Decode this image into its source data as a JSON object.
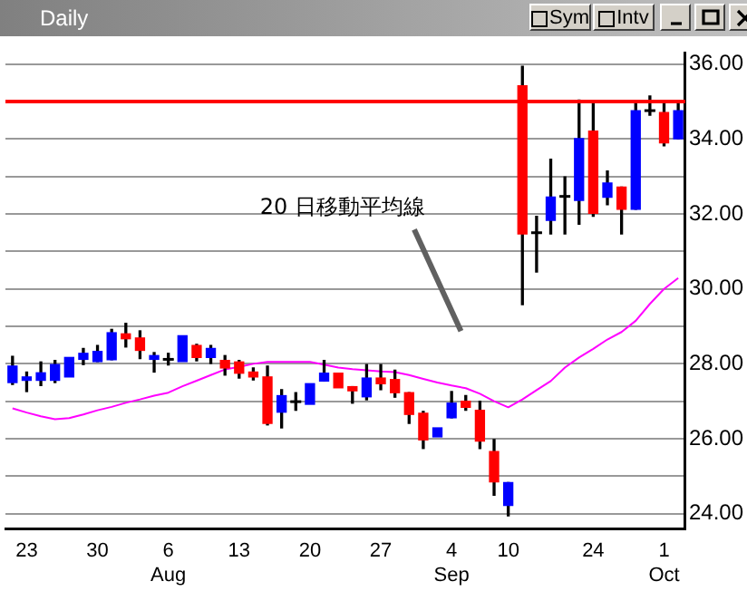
{
  "chart_data": {
    "type": "candlestick",
    "title": "Daily",
    "categories": [
      null,
      "23",
      null,
      null,
      null,
      null,
      "30",
      null,
      null,
      null,
      null,
      "6\nAug",
      null,
      null,
      null,
      null,
      "13",
      null,
      null,
      null,
      null,
      "20",
      null,
      null,
      null,
      null,
      "27",
      null,
      null,
      null,
      null,
      "4\nSep",
      null,
      null,
      null,
      "10",
      null,
      null,
      null,
      null,
      null,
      "24",
      null,
      null,
      null,
      null,
      "1\nOct",
      null
    ],
    "series": [
      {
        "type": "line",
        "color": "#ff00ff",
        "values": [
          26.81,
          26.7,
          26.6,
          26.52,
          26.55,
          26.65,
          26.76,
          26.85,
          26.96,
          27.05,
          27.15,
          27.23,
          27.4,
          27.55,
          27.7,
          27.85,
          27.92,
          28.0,
          28.05,
          28.05,
          28.05,
          28.05,
          27.98,
          27.9,
          27.86,
          27.83,
          27.8,
          27.78,
          27.7,
          27.6,
          27.5,
          27.42,
          27.35,
          27.2,
          27.0,
          26.84,
          27.05,
          27.3,
          27.54,
          27.9,
          28.17,
          28.4,
          28.65,
          28.85,
          29.15,
          29.6,
          30.0,
          30.29
        ]
      },
      {
        "type": "candlestick",
        "ohlc": [
          [
            27.5,
            28.2,
            27.45,
            27.94
          ],
          [
            27.56,
            27.78,
            27.26,
            27.65
          ],
          [
            27.56,
            28.05,
            27.42,
            27.76
          ],
          [
            27.56,
            28.09,
            27.5,
            27.98
          ],
          [
            27.65,
            28.17,
            27.65,
            28.17
          ],
          [
            28.12,
            28.41,
            27.98,
            28.28
          ],
          [
            28.06,
            28.49,
            28.06,
            28.33
          ],
          [
            28.11,
            28.92,
            28.11,
            28.83
          ],
          [
            28.8,
            29.08,
            28.45,
            28.67
          ],
          [
            28.69,
            28.88,
            28.14,
            28.36
          ],
          [
            28.12,
            28.3,
            27.78,
            28.22
          ],
          [
            28.12,
            28.28,
            27.97,
            28.12
          ],
          [
            28.06,
            28.75,
            28.06,
            28.75
          ],
          [
            28.49,
            28.52,
            28.08,
            28.17
          ],
          [
            28.17,
            28.49,
            28.01,
            28.41
          ],
          [
            28.09,
            28.22,
            27.7,
            27.89
          ],
          [
            28.05,
            28.09,
            27.62,
            27.75
          ],
          [
            27.78,
            27.89,
            27.57,
            27.65
          ],
          [
            27.65,
            27.94,
            26.37,
            26.41
          ],
          [
            26.71,
            27.31,
            26.29,
            27.15
          ],
          [
            26.99,
            27.23,
            26.76,
            26.99
          ],
          [
            26.92,
            27.47,
            26.92,
            27.47
          ],
          [
            27.54,
            28.09,
            27.54,
            27.75
          ],
          [
            27.75,
            27.75,
            27.36,
            27.36
          ],
          [
            27.39,
            27.39,
            26.95,
            27.28
          ],
          [
            27.12,
            27.98,
            27.04,
            27.62
          ],
          [
            27.62,
            27.98,
            27.31,
            27.47
          ],
          [
            27.58,
            27.83,
            27.11,
            27.23
          ],
          [
            27.23,
            27.23,
            26.41,
            26.65
          ],
          [
            26.68,
            26.73,
            25.74,
            25.97
          ],
          [
            26.05,
            26.29,
            26.05,
            26.29
          ],
          [
            26.56,
            27.26,
            26.56,
            26.95
          ],
          [
            27.0,
            27.15,
            26.76,
            26.84
          ],
          [
            26.76,
            27.0,
            25.74,
            25.94
          ],
          [
            25.66,
            25.98,
            24.49,
            24.85
          ],
          [
            24.22,
            24.83,
            23.94,
            24.83
          ],
          [
            35.42,
            35.94,
            29.58,
            31.47
          ],
          [
            31.5,
            31.94,
            30.45,
            31.5
          ],
          [
            31.83,
            33.46,
            31.47,
            32.45
          ],
          [
            32.47,
            32.99,
            31.47,
            32.47
          ],
          [
            32.36,
            35.04,
            31.73,
            34.01
          ],
          [
            34.21,
            35.0,
            31.94,
            32.02
          ],
          [
            32.45,
            33.15,
            32.25,
            32.83
          ],
          [
            32.72,
            32.72,
            31.47,
            32.13
          ],
          [
            32.13,
            35.0,
            32.13,
            34.76
          ],
          [
            34.76,
            35.15,
            34.64,
            34.76
          ],
          [
            34.71,
            35.0,
            33.82,
            33.9
          ],
          [
            34.01,
            35.0,
            34.01,
            34.76
          ]
        ],
        "colors": [
          "#0000ff",
          "#0000ff",
          "#0000ff",
          "#0000ff",
          "#0000ff",
          "#0000ff",
          "#0000ff",
          "#0000ff",
          "#ff0000",
          "#ff0000",
          "#0000ff",
          "#000000",
          "#0000ff",
          "#ff0000",
          "#0000ff",
          "#ff0000",
          "#ff0000",
          "#ff0000",
          "#ff0000",
          "#0000ff",
          "#000000",
          "#0000ff",
          "#0000ff",
          "#ff0000",
          "#ff0000",
          "#0000ff",
          "#ff0000",
          "#ff0000",
          "#ff0000",
          "#ff0000",
          "#0000ff",
          "#0000ff",
          "#ff0000",
          "#ff0000",
          "#ff0000",
          "#0000ff",
          "#ff0000",
          "#000000",
          "#0000ff",
          "#000000",
          "#0000ff",
          "#ff0000",
          "#0000ff",
          "#ff0000",
          "#0000ff",
          "#000000",
          "#ff0000",
          "#0000ff"
        ]
      }
    ],
    "ylim": [
      23.6,
      36.3
    ],
    "yticks": [
      {
        "value": 24,
        "label": "24.00"
      },
      {
        "value": 25,
        "label": null
      },
      {
        "value": 26,
        "label": "26.00"
      },
      {
        "value": 27,
        "label": null
      },
      {
        "value": 28,
        "label": "28.00"
      },
      {
        "value": 29,
        "label": null
      },
      {
        "value": 30,
        "label": "30.00"
      },
      {
        "value": 31,
        "label": null
      },
      {
        "value": 32,
        "label": "32.00"
      },
      {
        "value": 33,
        "label": null
      },
      {
        "value": 34,
        "label": "34.00"
      },
      {
        "value": 35,
        "label": null
      },
      {
        "value": 36,
        "label": "36.00"
      }
    ],
    "grid": "y",
    "ref_lines": [
      {
        "axis": "y",
        "value": 35.0,
        "color": "#ff0000"
      }
    ],
    "annotations": [
      "20 日移動平均線",
      "Sym",
      "Intv"
    ]
  }
}
